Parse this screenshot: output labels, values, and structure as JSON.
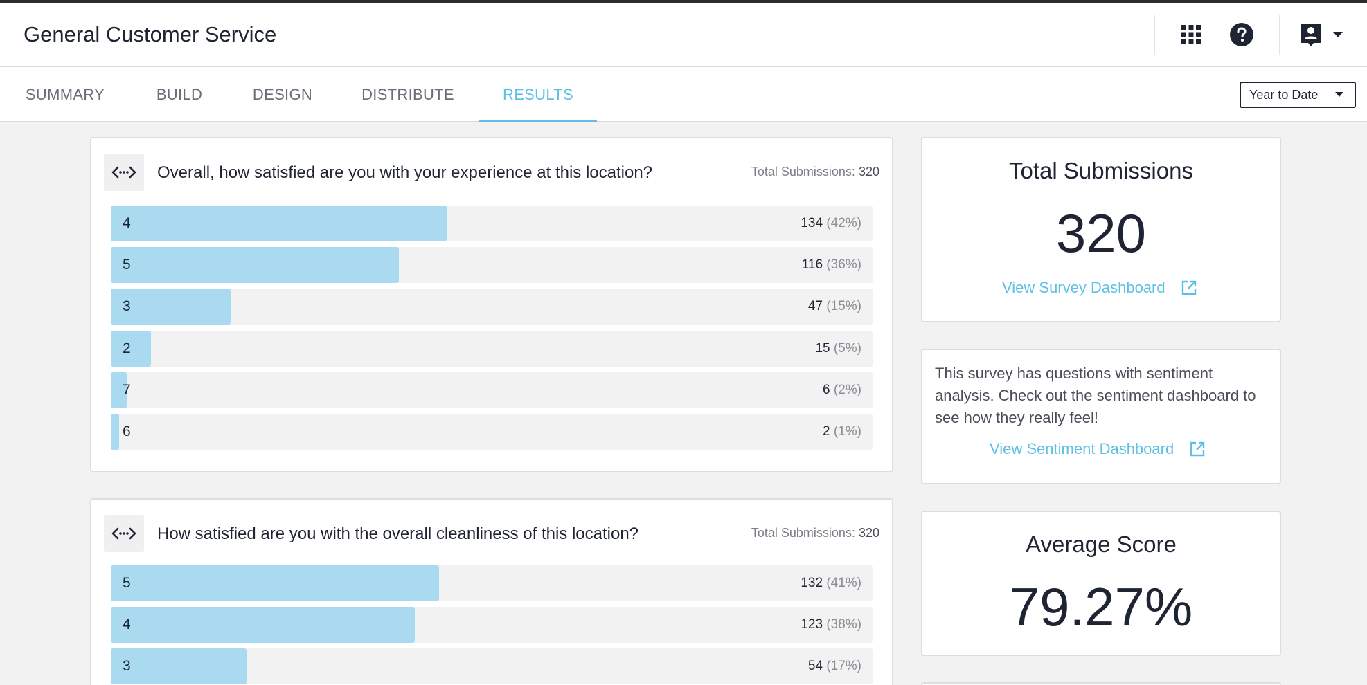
{
  "header": {
    "title": "General Customer Service",
    "icons": [
      "apps-grid-icon",
      "help-icon",
      "account-icon",
      "chevron-down-icon"
    ]
  },
  "tabs": [
    {
      "label": "SUMMARY",
      "active": false
    },
    {
      "label": "BUILD",
      "active": false
    },
    {
      "label": "DESIGN",
      "active": false
    },
    {
      "label": "DISTRIBUTE",
      "active": false
    },
    {
      "label": "RESULTS",
      "active": true
    }
  ],
  "date_filter": {
    "selected": "Year to Date"
  },
  "questions": [
    {
      "title": "Overall, how satisfied are you with your experience at this location?",
      "total_label": "Total Submissions:",
      "total_value": "320",
      "rows": [
        {
          "label": "4",
          "count": "134",
          "percent": "(42%)",
          "share": 0.42
        },
        {
          "label": "5",
          "count": "116",
          "percent": "(36%)",
          "share": 0.36
        },
        {
          "label": "3",
          "count": "47",
          "percent": "(15%)",
          "share": 0.15
        },
        {
          "label": "2",
          "count": "15",
          "percent": "(5%)",
          "share": 0.05
        },
        {
          "label": "7",
          "count": "6",
          "percent": "(2%)",
          "share": 0.02
        },
        {
          "label": "6",
          "count": "2",
          "percent": "(1%)",
          "share": 0.01
        }
      ]
    },
    {
      "title": "How satisfied are you with the overall cleanliness of this location?",
      "total_label": "Total Submissions:",
      "total_value": "320",
      "rows": [
        {
          "label": "5",
          "count": "132",
          "percent": "(41%)",
          "share": 0.41
        },
        {
          "label": "4",
          "count": "123",
          "percent": "(38%)",
          "share": 0.38
        },
        {
          "label": "3",
          "count": "54",
          "percent": "(17%)",
          "share": 0.17
        }
      ]
    }
  ],
  "total_submissions": {
    "title": "Total Submissions",
    "value": "320",
    "link": "View Survey Dashboard"
  },
  "sentiment": {
    "text": "This survey has questions with sentiment analysis. Check out the sentiment dashboard to see how they really feel!",
    "link": "View Sentiment Dashboard"
  },
  "average_score": {
    "title": "Average Score",
    "value": "79.27%"
  },
  "colors": {
    "accent": "#5ec0e4",
    "bar_fill": "#a9daf0",
    "text_dark": "#1f2433"
  }
}
